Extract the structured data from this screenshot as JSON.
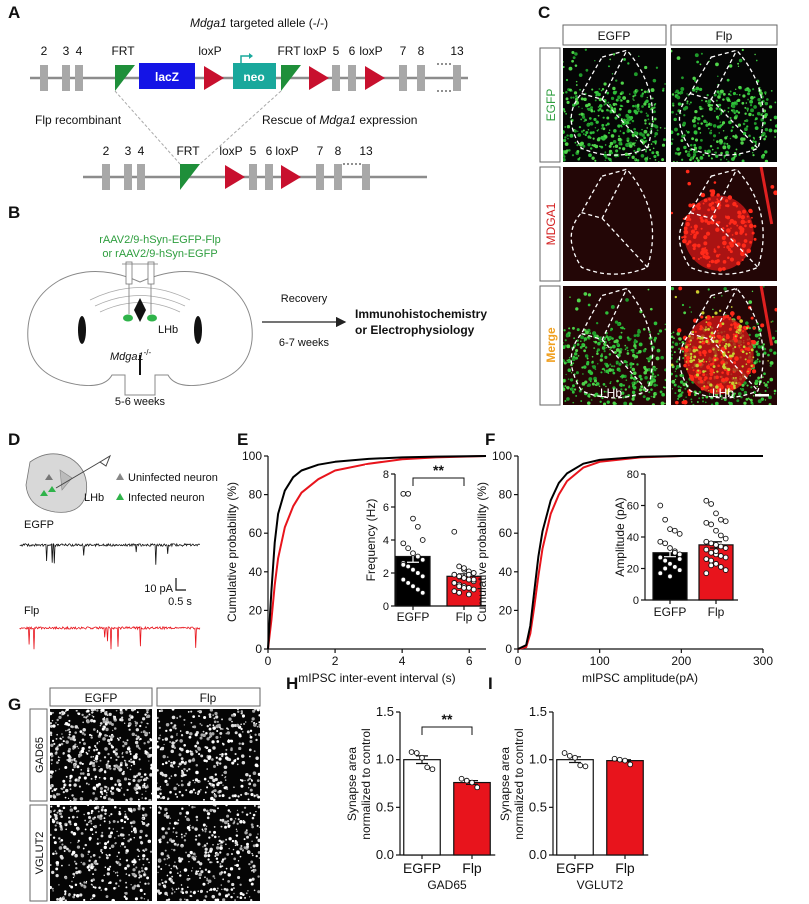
{
  "panel_labels": [
    "A",
    "B",
    "C",
    "D",
    "E",
    "F",
    "G",
    "H",
    "I"
  ],
  "colors": {
    "frt": "#1f8f3a",
    "loxp": "#c8102e",
    "lacz": "#1414e6",
    "neo": "#19a89c",
    "exon": "#a8a8a8",
    "egfp_text": "#2e9e3e",
    "mdga1_text": "#d42020",
    "merge_text": "#f0a020",
    "flp": "#e8141c",
    "egfp": "#000000"
  },
  "panel_a": {
    "title_italic": "Mdga1",
    "title_rest": " targeted allele (-/-)",
    "top_exons": [
      "2",
      "3",
      "4",
      "5",
      "6",
      "7",
      "8",
      "13"
    ],
    "bottom_exons": [
      "2",
      "3",
      "4",
      "5",
      "6",
      "7",
      "8",
      "13"
    ],
    "frt": "FRT",
    "loxp": "loxP",
    "lacz": "lacZ",
    "neo": "neo",
    "flp_recombinant": "Flp recombinant",
    "rescue_pre": "Rescue of ",
    "rescue_italic": "Mdga1",
    "rescue_post": " expression"
  },
  "panel_b": {
    "virus_1": "rAAV2/9-hSyn-EGFP-Flp",
    "virus_2": "or rAAV2/9-hSyn-EGFP",
    "region": "LHb",
    "genotype": "Mdga1",
    "genotype_sup": "-/-",
    "age": "5-6 weeks",
    "recovery": "Recovery",
    "duration": "6-7 weeks",
    "outcome_1": "Immunohistochemistry",
    "outcome_2": "or Electrophysiology"
  },
  "panel_c": {
    "columns": [
      "EGFP",
      "Flp"
    ],
    "rows": [
      "EGFP",
      "MDGA1",
      "Merge"
    ],
    "region": "LHb"
  },
  "panel_d": {
    "uninfected": "Uninfected neuron",
    "infected": "Infected neuron",
    "region": "LHb",
    "traces": [
      "EGFP",
      "Flp"
    ],
    "scale_y": "10 pA",
    "scale_x": "0.5 s"
  },
  "panel_g": {
    "columns": [
      "EGFP",
      "Flp"
    ],
    "rows": [
      "GAD65",
      "VGLUT2"
    ]
  },
  "chart_data": [
    {
      "id": "E",
      "type": "line",
      "xlabel": "mIPSC inter-event interval (s)",
      "ylabel": "Cumulative probability (%)",
      "xlim": [
        0,
        6.5
      ],
      "ylim": [
        0,
        100
      ],
      "xticks": [
        "0",
        "2",
        "4",
        "6"
      ],
      "yticks": [
        "0",
        "20",
        "40",
        "60",
        "80",
        "100"
      ],
      "series": [
        {
          "name": "EGFP",
          "color": "#000000",
          "x": [
            0,
            0.1,
            0.2,
            0.3,
            0.5,
            0.75,
            1,
            1.5,
            2,
            3,
            4,
            5,
            6.5
          ],
          "y": [
            0,
            30,
            55,
            70,
            82,
            89,
            92.5,
            95.5,
            97,
            98.5,
            99.3,
            99.7,
            100
          ]
        },
        {
          "name": "Flp",
          "color": "#e8141c",
          "x": [
            0,
            0.1,
            0.2,
            0.3,
            0.5,
            0.75,
            1,
            1.5,
            2,
            3,
            4,
            5,
            6.5
          ],
          "y": [
            0,
            15,
            33,
            47,
            63,
            74,
            81,
            88,
            92.5,
            96,
            98.3,
            99.3,
            100
          ]
        }
      ],
      "inset": {
        "type": "bar",
        "ylabel": "Frequency (Hz)",
        "ylim": [
          0,
          8
        ],
        "yticks": [
          "0",
          "2",
          "4",
          "6",
          "8"
        ],
        "categories": [
          "EGFP",
          "Flp"
        ],
        "values": [
          3.0,
          1.8
        ],
        "sem": [
          0.35,
          0.15
        ],
        "points": [
          [
            6.8,
            6.8,
            5.3,
            4.8,
            4.0,
            3.8,
            3.5,
            3.2,
            3.0,
            2.8,
            2.6,
            2.4,
            2.2,
            2.0,
            1.8,
            1.6,
            1.4,
            1.2,
            1.0,
            0.8,
            2.5
          ],
          [
            4.5,
            2.4,
            2.2,
            2.1,
            2.0,
            1.9,
            1.8,
            1.7,
            1.6,
            1.5,
            1.4,
            1.3,
            1.2,
            1.1,
            1.0,
            0.9,
            0.8,
            2.3,
            1.9,
            1.6,
            1.4,
            1.2,
            1.1,
            0.7,
            2.0
          ]
        ],
        "significance": "**"
      }
    },
    {
      "id": "F",
      "type": "line",
      "xlabel": "mIPSC amplitude(pA)",
      "ylabel": "Cumulative probability (%)",
      "xlim": [
        0,
        300
      ],
      "ylim": [
        0,
        100
      ],
      "xticks": [
        "0",
        "100",
        "200",
        "300"
      ],
      "yticks": [
        "0",
        "20",
        "40",
        "60",
        "80",
        "100"
      ],
      "series": [
        {
          "name": "EGFP",
          "color": "#000000",
          "x": [
            0,
            10,
            15,
            20,
            25,
            30,
            40,
            50,
            60,
            80,
            100,
            150,
            200,
            300
          ],
          "y": [
            0,
            2,
            12,
            30,
            48,
            61,
            77,
            86,
            91,
            96,
            98,
            99.6,
            100,
            100
          ]
        },
        {
          "name": "Flp",
          "color": "#e8141c",
          "x": [
            0,
            10,
            15,
            20,
            25,
            30,
            40,
            50,
            60,
            80,
            100,
            150,
            200
          ],
          "y": [
            0,
            1,
            8,
            22,
            38,
            52,
            70,
            80,
            87,
            94,
            97,
            99.3,
            100
          ]
        }
      ],
      "inset": {
        "type": "bar",
        "ylabel": "Amplitude (pA)",
        "ylim": [
          0,
          80
        ],
        "yticks": [
          "0",
          "20",
          "40",
          "60",
          "80"
        ],
        "categories": [
          "EGFP",
          "Flp"
        ],
        "values": [
          30,
          35
        ],
        "sem": [
          2.5,
          2.0
        ],
        "points": [
          [
            60,
            51,
            45,
            44,
            42,
            37,
            36,
            33,
            31,
            29,
            27,
            25,
            23,
            21,
            19,
            17,
            20,
            15,
            30,
            26
          ],
          [
            63,
            61,
            55,
            51,
            50,
            49,
            48,
            44,
            41,
            39,
            37,
            36,
            35,
            34,
            33,
            32,
            30,
            29,
            28,
            27,
            26,
            25,
            23,
            21,
            19,
            17,
            22,
            31
          ]
        ],
        "significance": ""
      }
    },
    {
      "id": "H",
      "type": "bar",
      "ylabel_1": "Synapse area",
      "ylabel_2": "normalized to control",
      "xlabel": "GAD65",
      "ylim": [
        0,
        1.5
      ],
      "yticks": [
        "0.0",
        "0.5",
        "1.0",
        "1.5"
      ],
      "categories": [
        "EGFP",
        "Flp"
      ],
      "values": [
        1.0,
        0.76
      ],
      "sem": [
        0.04,
        0.02
      ],
      "points": [
        [
          1.08,
          1.07,
          1.02,
          0.92,
          0.9
        ],
        [
          0.8,
          0.78,
          0.76,
          0.71
        ]
      ],
      "significance": "**"
    },
    {
      "id": "I",
      "type": "bar",
      "ylabel_1": "Synapse area",
      "ylabel_2": "normalized to control",
      "xlabel": "VGLUT2",
      "ylim": [
        0,
        1.5
      ],
      "yticks": [
        "0.0",
        "0.5",
        "1.0",
        "1.5"
      ],
      "categories": [
        "EGFP",
        "Flp"
      ],
      "values": [
        1.0,
        0.99
      ],
      "sem": [
        0.03,
        0.01
      ],
      "points": [
        [
          1.07,
          1.04,
          1.02,
          0.94,
          0.93
        ],
        [
          1.01,
          1.0,
          0.99,
          0.95
        ]
      ],
      "significance": ""
    }
  ]
}
